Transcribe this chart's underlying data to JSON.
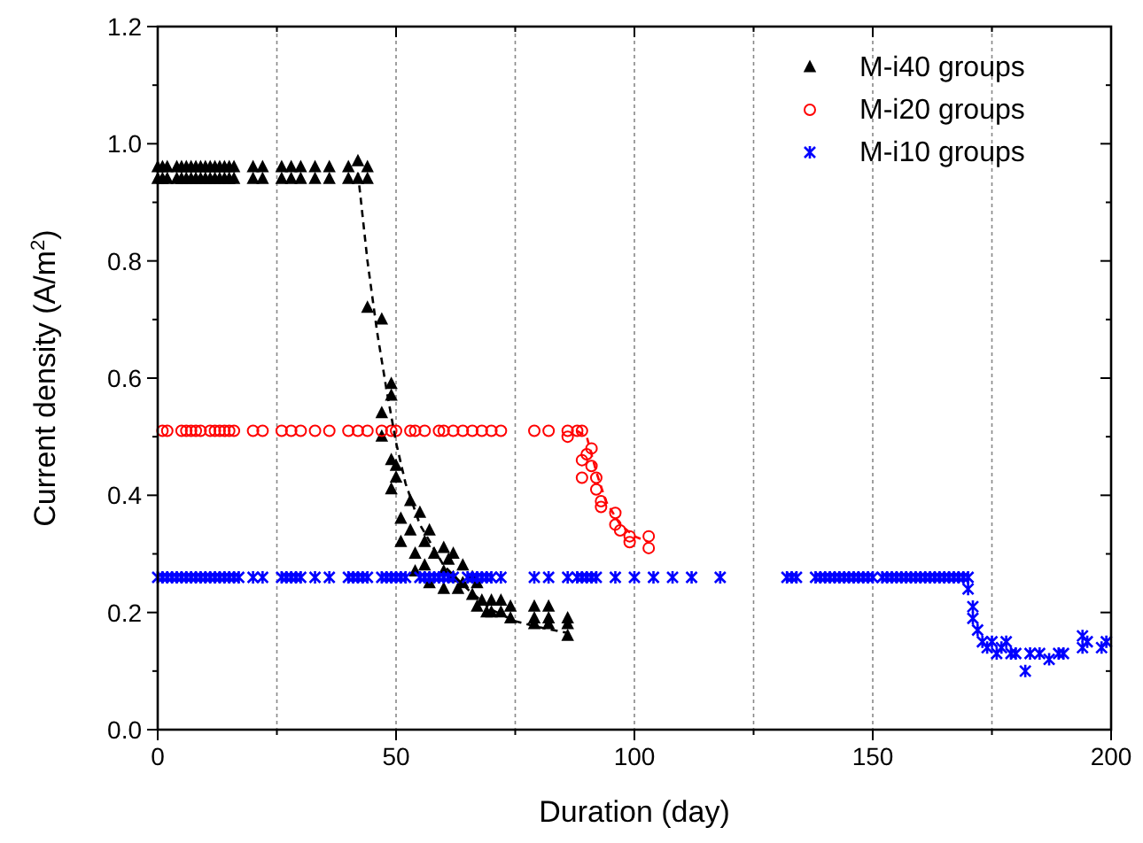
{
  "chart_data": {
    "type": "scatter",
    "xlabel": "Duration (day)",
    "ylabel": "Current density (A/m$^{2}$)",
    "xlim": [
      0,
      200
    ],
    "ylim": [
      0,
      1.2
    ],
    "xticks": [
      0,
      {
        "value": 25,
        "label": null
      },
      50,
      {
        "value": 75,
        "label": null
      },
      100,
      {
        "value": 125,
        "label": null
      },
      150,
      {
        "value": 175,
        "label": null
      },
      200
    ],
    "yticks": [
      "0.0",
      {
        "value": 0.1,
        "label": null
      },
      {
        "value": 0.2,
        "label": "0.2"
      },
      {
        "value": 0.3,
        "label": null
      },
      {
        "value": 0.4,
        "label": "0.4"
      },
      {
        "value": 0.5,
        "label": null
      },
      {
        "value": 0.6,
        "label": "0.6"
      },
      {
        "value": 0.7,
        "label": null
      },
      {
        "value": 0.8,
        "label": "0.8"
      },
      {
        "value": 0.9,
        "label": null
      },
      {
        "value": 1,
        "label": "1.0"
      },
      {
        "value": 1.1,
        "label": null
      },
      {
        "value": 1.2,
        "label": "1.2"
      }
    ],
    "grid": "x",
    "legend": "top right",
    "series": [
      {
        "name": "M-i40 groups",
        "marker": "triangle",
        "color": "#000000",
        "x": [
          0,
          1,
          2,
          4,
          5,
          6,
          7,
          8,
          9,
          10,
          11,
          12,
          13,
          14,
          15,
          16,
          20,
          22,
          26,
          28,
          30,
          33,
          36,
          40,
          42,
          44,
          0,
          1,
          2,
          4,
          5,
          6,
          7,
          8,
          9,
          10,
          11,
          12,
          13,
          14,
          15,
          16,
          20,
          22,
          26,
          28,
          30,
          33,
          36,
          40,
          42,
          44,
          44,
          47,
          47,
          47,
          49,
          49,
          49,
          49,
          50,
          50,
          51,
          51,
          53,
          53,
          54,
          54,
          55,
          56,
          56,
          57,
          57,
          58,
          60,
          60,
          60,
          61,
          62,
          62,
          63,
          64,
          64,
          66,
          66,
          67,
          67,
          68,
          69,
          70,
          70,
          72,
          72,
          74,
          74,
          79,
          79,
          79,
          82,
          82,
          82,
          86,
          86,
          86
        ],
        "values": [
          0.96,
          0.96,
          0.96,
          0.96,
          0.96,
          0.96,
          0.96,
          0.96,
          0.96,
          0.96,
          0.96,
          0.96,
          0.96,
          0.96,
          0.96,
          0.96,
          0.96,
          0.96,
          0.96,
          0.96,
          0.96,
          0.96,
          0.96,
          0.96,
          0.97,
          0.96,
          0.94,
          0.94,
          0.94,
          0.94,
          0.94,
          0.94,
          0.94,
          0.94,
          0.94,
          0.94,
          0.94,
          0.94,
          0.94,
          0.94,
          0.94,
          0.94,
          0.94,
          0.94,
          0.94,
          0.94,
          0.94,
          0.94,
          0.94,
          0.94,
          0.94,
          0.94,
          0.72,
          0.7,
          0.54,
          0.5,
          0.59,
          0.57,
          0.46,
          0.41,
          0.45,
          0.43,
          0.36,
          0.32,
          0.39,
          0.34,
          0.3,
          0.27,
          0.37,
          0.32,
          0.28,
          0.34,
          0.25,
          0.3,
          0.31,
          0.27,
          0.24,
          0.29,
          0.3,
          0.26,
          0.24,
          0.28,
          0.25,
          0.26,
          0.23,
          0.25,
          0.21,
          0.22,
          0.2,
          0.22,
          0.2,
          0.22,
          0.2,
          0.21,
          0.19,
          0.21,
          0.19,
          0.18,
          0.21,
          0.19,
          0.18,
          0.19,
          0.18,
          0.16
        ]
      },
      {
        "name": "M-i20 groups",
        "marker": "circle",
        "color": "#ff0000",
        "x": [
          1,
          2,
          5,
          6,
          7,
          8,
          9,
          11,
          12,
          13,
          14,
          15,
          16,
          20,
          22,
          26,
          28,
          30,
          33,
          36,
          40,
          42,
          44,
          47,
          49,
          50,
          53,
          54,
          56,
          59,
          60,
          62,
          64,
          66,
          68,
          70,
          72,
          79,
          82,
          86,
          88,
          89,
          86,
          89,
          89,
          90,
          91,
          91,
          92,
          92,
          93,
          93,
          96,
          96,
          97,
          99,
          99,
          103,
          103
        ],
        "values": [
          0.51,
          0.51,
          0.51,
          0.51,
          0.51,
          0.51,
          0.51,
          0.51,
          0.51,
          0.51,
          0.51,
          0.51,
          0.51,
          0.51,
          0.51,
          0.51,
          0.51,
          0.51,
          0.51,
          0.51,
          0.51,
          0.51,
          0.51,
          0.51,
          0.51,
          0.51,
          0.51,
          0.51,
          0.51,
          0.51,
          0.51,
          0.51,
          0.51,
          0.51,
          0.51,
          0.51,
          0.51,
          0.51,
          0.51,
          0.51,
          0.51,
          0.51,
          0.5,
          0.46,
          0.43,
          0.47,
          0.48,
          0.45,
          0.43,
          0.41,
          0.39,
          0.38,
          0.37,
          0.35,
          0.34,
          0.33,
          0.32,
          0.33,
          0.31
        ]
      },
      {
        "name": "M-i10 groups",
        "marker": "cross",
        "color": "#0000ff",
        "x": [
          0,
          1,
          2,
          3,
          4,
          5,
          6,
          7,
          8,
          9,
          10,
          11,
          12,
          13,
          14,
          15,
          16,
          17,
          20,
          22,
          26,
          27,
          28,
          29,
          30,
          33,
          36,
          40,
          41,
          42,
          43,
          44,
          47,
          48,
          49,
          50,
          51,
          52,
          55,
          56,
          57,
          58,
          59,
          60,
          61,
          62,
          65,
          66,
          67,
          68,
          69,
          70,
          72,
          79,
          82,
          86,
          88,
          89,
          90,
          91,
          92,
          96,
          100,
          104,
          108,
          112,
          118,
          132,
          133,
          134,
          138,
          139,
          140,
          141,
          142,
          143,
          144,
          145,
          146,
          147,
          148,
          149,
          150,
          152,
          153,
          154,
          155,
          156,
          157,
          158,
          159,
          160,
          161,
          162,
          163,
          164,
          165,
          166,
          167,
          168,
          169,
          170,
          170,
          171,
          171,
          172,
          173,
          174,
          175,
          176,
          177,
          178,
          179,
          180,
          182,
          183,
          185,
          187,
          189,
          190,
          194,
          194,
          195,
          198,
          199
        ],
        "values": [
          0.26,
          0.26,
          0.26,
          0.26,
          0.26,
          0.26,
          0.26,
          0.26,
          0.26,
          0.26,
          0.26,
          0.26,
          0.26,
          0.26,
          0.26,
          0.26,
          0.26,
          0.26,
          0.26,
          0.26,
          0.26,
          0.26,
          0.26,
          0.26,
          0.26,
          0.26,
          0.26,
          0.26,
          0.26,
          0.26,
          0.26,
          0.26,
          0.26,
          0.26,
          0.26,
          0.26,
          0.26,
          0.26,
          0.26,
          0.26,
          0.26,
          0.26,
          0.26,
          0.26,
          0.26,
          0.26,
          0.26,
          0.26,
          0.26,
          0.26,
          0.26,
          0.26,
          0.26,
          0.26,
          0.26,
          0.26,
          0.26,
          0.26,
          0.26,
          0.26,
          0.26,
          0.26,
          0.26,
          0.26,
          0.26,
          0.26,
          0.26,
          0.26,
          0.26,
          0.26,
          0.26,
          0.26,
          0.26,
          0.26,
          0.26,
          0.26,
          0.26,
          0.26,
          0.26,
          0.26,
          0.26,
          0.26,
          0.26,
          0.26,
          0.26,
          0.26,
          0.26,
          0.26,
          0.26,
          0.26,
          0.26,
          0.26,
          0.26,
          0.26,
          0.26,
          0.26,
          0.26,
          0.26,
          0.26,
          0.26,
          0.26,
          0.26,
          0.24,
          0.21,
          0.19,
          0.17,
          0.15,
          0.14,
          0.15,
          0.13,
          0.14,
          0.15,
          0.13,
          0.13,
          0.1,
          0.13,
          0.13,
          0.12,
          0.13,
          0.13,
          0.16,
          0.14,
          0.15,
          0.14,
          0.15
        ]
      },
      {
        "type": "line",
        "color": "#000000",
        "line_style": "dashed",
        "marker": "none",
        "x": [
          42,
          44,
          46,
          48,
          50,
          52,
          55,
          60,
          65,
          70,
          75,
          80,
          86
        ],
        "values": [
          0.95,
          0.8,
          0.68,
          0.58,
          0.49,
          0.42,
          0.35,
          0.28,
          0.24,
          0.205,
          0.185,
          0.175,
          0.165
        ]
      },
      {
        "type": "line",
        "color": "#ff0000",
        "line_style": "dashed",
        "marker": "none",
        "x": [
          88,
          90,
          92,
          94,
          97,
          100,
          103
        ],
        "values": [
          0.51,
          0.5,
          0.44,
          0.39,
          0.35,
          0.33,
          0.32
        ]
      }
    ]
  }
}
